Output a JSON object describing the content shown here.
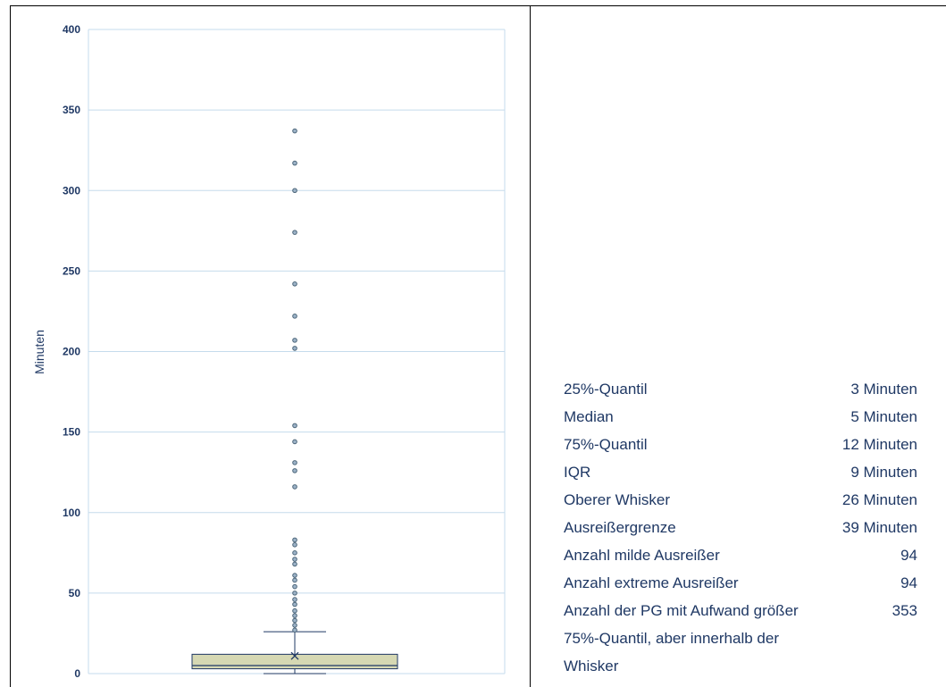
{
  "chart_data": {
    "type": "box",
    "ylabel": "Minuten",
    "ylim": [
      0,
      400
    ],
    "yticks": [
      0,
      50,
      100,
      150,
      200,
      250,
      300,
      350,
      400
    ],
    "grid": true,
    "box": {
      "q1": 3,
      "median": 5,
      "q3": 12,
      "mean": 11,
      "whisker_low": 0,
      "whisker_high": 26
    },
    "outliers": [
      337,
      317,
      300,
      274,
      242,
      222,
      207,
      202,
      154,
      144,
      131,
      126,
      116,
      83,
      80,
      75,
      71,
      68,
      61,
      58,
      54,
      50,
      46,
      43,
      39,
      36,
      33,
      30,
      27
    ],
    "colors": {
      "box_fill": "#d6d8b3",
      "box_stroke": "#1f3864",
      "grid": "#c5dbec",
      "outlier": "#9db3c8",
      "text": "#1f3864"
    }
  },
  "stats": [
    {
      "label": "25%-Quantil",
      "value": "3 Minuten"
    },
    {
      "label": "Median",
      "value": "5 Minuten"
    },
    {
      "label": "75%-Quantil",
      "value": "12 Minuten"
    },
    {
      "label": "IQR",
      "value": "9 Minuten"
    },
    {
      "label": "Oberer Whisker",
      "value": "26 Minuten"
    },
    {
      "label": "Ausreißergrenze",
      "value": "39 Minuten"
    },
    {
      "label": "Anzahl milde Ausreißer",
      "value": "94"
    },
    {
      "label": "Anzahl extreme Ausreißer",
      "value": "94"
    },
    {
      "label": "Anzahl der PG mit Aufwand größer 75%-Quantil, aber innerhalb der Whisker",
      "value": "353"
    }
  ]
}
